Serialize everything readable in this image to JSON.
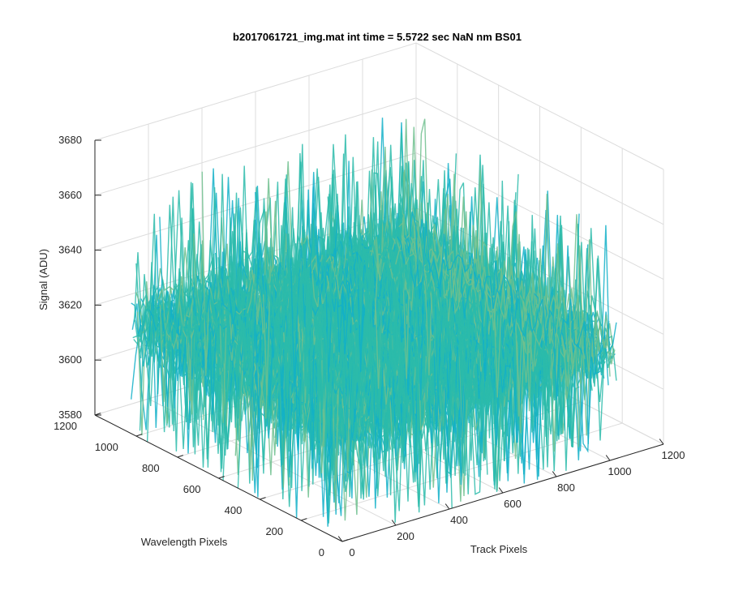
{
  "chart_data": {
    "type": "surface",
    "title": "b2017061721_img.mat int time = 5.5722 sec  NaN nm BS01",
    "xlabel": "Track Pixels",
    "ylabel": "Wavelength Pixels",
    "zlabel": "Signal (ADU)",
    "xlim": [
      0,
      1200
    ],
    "ylim": [
      0,
      1200
    ],
    "zlim": [
      3580,
      3680
    ],
    "x_ticks": [
      "0",
      "200",
      "400",
      "600",
      "800",
      "1000",
      "1200"
    ],
    "y_ticks": [
      "0",
      "200",
      "400",
      "600",
      "800",
      "1000",
      "1200"
    ],
    "z_ticks": [
      "3580",
      "3600",
      "3620",
      "3640",
      "3660",
      "3680"
    ],
    "surface_extent": {
      "track_pixels": [
        0,
        1024
      ],
      "wavelength_pixels": [
        0,
        1024
      ]
    },
    "signal_mean": 3620,
    "signal_noise_range": [
      3590,
      3660
    ],
    "grid": true,
    "colormap": "parula",
    "colors": [
      "#0072bd",
      "#0096d8",
      "#12b0c8",
      "#2bbbaa",
      "#6fc08e",
      "#a9c66f",
      "#e2c35a",
      "#f9d64a"
    ]
  }
}
